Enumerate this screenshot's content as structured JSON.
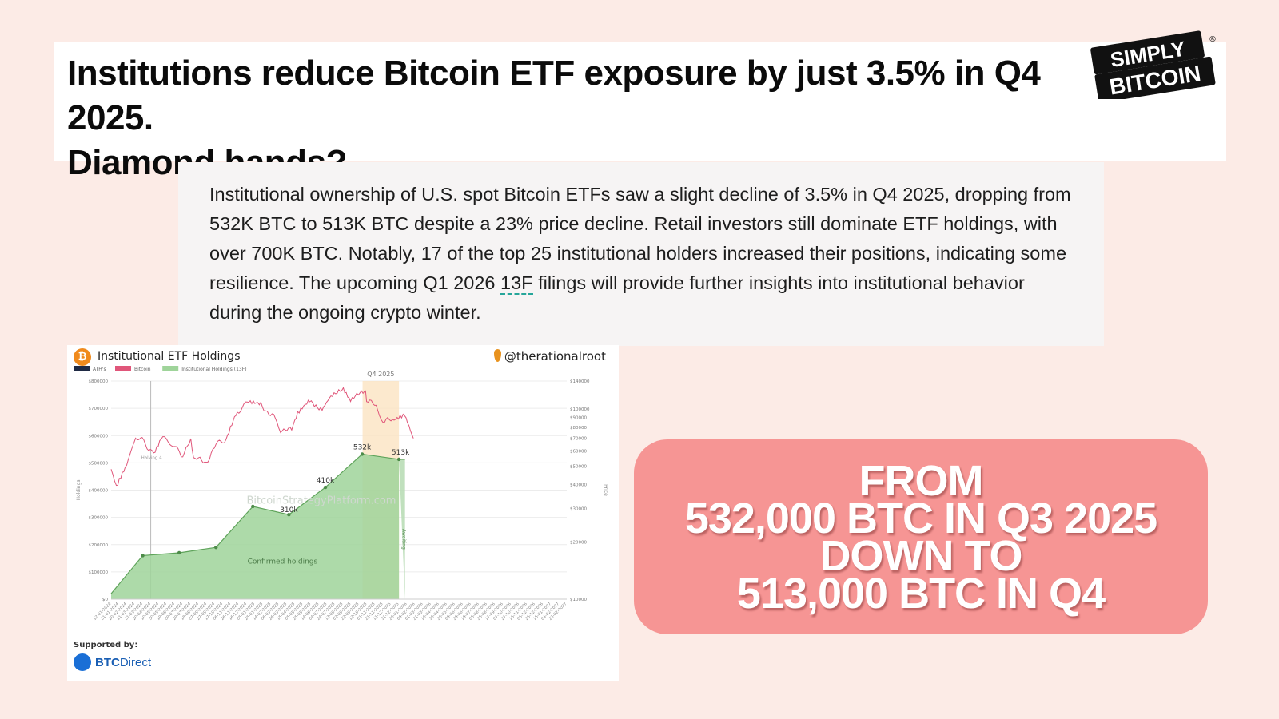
{
  "headline": {
    "line1": "Institutions reduce Bitcoin ETF exposure by just 3.5% in Q4 2025.",
    "line2": "Diamond hands?"
  },
  "logo": {
    "line1": "SIMPLY",
    "line2": "BITCOIN",
    "registered": "®"
  },
  "summary": {
    "before_term": "Institutional ownership of U.S. spot Bitcoin ETFs saw a slight decline of 3.5% in Q4 2025, dropping from 532K BTC to 513K BTC despite a 23% price decline. Retail investors still dominate ETF holdings, with over 700K BTC. Notably, 17 of the top 25 institutional holders increased their positions, indicating some resilience. The upcoming Q1 2026 ",
    "term": "13F",
    "after_term": " filings will provide further insights into institutional behavior during the ongoing crypto winter."
  },
  "chart_card": {
    "title": "Institutional ETF Holdings",
    "btc_icon": "₿",
    "handle": "@therationalroot",
    "supported_by": "Supported by:",
    "sponsor_bold": "BTC",
    "sponsor_rest": "Direct"
  },
  "callout": {
    "line1": "FROM",
    "line2": "532,000 BTC IN Q3 2025",
    "line3": "DOWN TO",
    "line4": "513,000 BTC IN Q4"
  },
  "chart_data": {
    "type": "area",
    "title": "Institutional ETF Holdings",
    "legend": [
      "ATH's",
      "Bitcoin",
      "Institutional Holdings (13F)"
    ],
    "legend_position": "top-left",
    "colors": {
      "ath": "#1f2a44",
      "bitcoin": "#e0567a",
      "holdings": "#9fd49a",
      "holdings_line": "#5ea35a",
      "q4_band": "#fbe3c2"
    },
    "ylabel_left": "Holdings",
    "ylabel_right": "Price",
    "left_ticks": [
      "$0",
      "$100000",
      "$200000",
      "$300000",
      "$400000",
      "$500000",
      "$600000",
      "$700000",
      "$800000"
    ],
    "right_ticks": [
      "$10000",
      "$20000",
      "$30000",
      "$40000",
      "$50000",
      "$60000",
      "$70000",
      "$80000",
      "$90000",
      "$100000",
      "$140000"
    ],
    "right_scale": "log",
    "ylim_left": [
      0,
      800000
    ],
    "ylim_right": [
      10000,
      140000
    ],
    "x_range": [
      "2024-01-12",
      "2027-02-23"
    ],
    "x_ticks": [
      "12-01-2024",
      "31-01-2024",
      "20-02-2024",
      "11-03-2024",
      "31-03-2024",
      "20-04-2024",
      "10-05-2024",
      "30-05-2024",
      "19-06-2024",
      "09-07-2024",
      "29-07-2024",
      "18-08-2024",
      "07-09-2024",
      "27-09-2024",
      "17-10-2024",
      "06-11-2024",
      "26-11-2024",
      "16-12-2024",
      "05-01-2025",
      "25-01-2025",
      "14-02-2025",
      "06-03-2025",
      "26-03-2025",
      "15-04-2025",
      "05-05-2025",
      "25-05-2025",
      "14-06-2025",
      "04-07-2025",
      "24-07-2025",
      "13-08-2025",
      "02-09-2025",
      "22-09-2025",
      "12-10-2025",
      "01-11-2025",
      "21-11-2025",
      "11-12-2025",
      "31-12-2025",
      "20-01-2026",
      "09-02-2026",
      "01-03-2026",
      "21-03-2026",
      "10-04-2026",
      "30-04-2026",
      "20-05-2026",
      "09-06-2026",
      "29-06-2026",
      "19-07-2026",
      "08-08-2026",
      "28-08-2026",
      "17-09-2026",
      "07-10-2026",
      "27-10-2026",
      "16-11-2026",
      "06-12-2026",
      "26-12-2026",
      "15-01-2027",
      "04-02-2027",
      "23-02-2027"
    ],
    "holdings": {
      "name": "Institutional Holdings (13F)",
      "x": [
        "2024-01-12",
        "2024-03-31",
        "2024-06-30",
        "2024-09-30",
        "2024-12-31",
        "2025-03-31",
        "2025-06-30",
        "2025-09-30",
        "2025-12-31"
      ],
      "values": [
        20000,
        160000,
        170000,
        190000,
        340000,
        310000,
        410000,
        532000,
        513000
      ]
    },
    "pending_projection": {
      "x_end": "2026-01-15",
      "value": 513000,
      "label": "Awaiting"
    },
    "bitcoin_price": {
      "name": "Bitcoin",
      "x": [
        "2024-01-12",
        "2024-01-25",
        "2024-02-20",
        "2024-03-13",
        "2024-04-15",
        "2024-05-01",
        "2024-05-20",
        "2024-06-10",
        "2024-07-05",
        "2024-07-29",
        "2024-08-05",
        "2024-09-06",
        "2024-09-30",
        "2024-10-29",
        "2024-11-12",
        "2024-11-22",
        "2024-12-17",
        "2025-01-20",
        "2025-02-25",
        "2025-03-10",
        "2025-04-07",
        "2025-04-22",
        "2025-05-22",
        "2025-06-22",
        "2025-07-14",
        "2025-08-14",
        "2025-09-01",
        "2025-10-06",
        "2025-10-11",
        "2025-11-04",
        "2025-11-21",
        "2025-12-15",
        "2026-01-14",
        "2026-02-05"
      ],
      "values": [
        46000,
        40000,
        52000,
        72000,
        63000,
        59000,
        70000,
        66000,
        57000,
        68000,
        54000,
        53000,
        64000,
        72000,
        89000,
        98000,
        106000,
        106000,
        88000,
        79000,
        76000,
        93000,
        111000,
        101000,
        120000,
        123000,
        108000,
        125000,
        112000,
        101000,
        85000,
        87000,
        95000,
        70000
      ]
    },
    "annotations": [
      {
        "label": "Q4 2025",
        "x_start": "2025-10-01",
        "x_end": "2025-12-31"
      },
      {
        "label": "Halving 4",
        "x": "2024-04-20"
      },
      {
        "label": "532k",
        "x": "2025-09-30",
        "y": 532000
      },
      {
        "label": "513k",
        "x": "2025-12-31",
        "y": 513000
      },
      {
        "label": "410k",
        "x": "2025-06-30",
        "y": 410000
      },
      {
        "label": "310k",
        "x": "2025-03-31",
        "y": 310000
      },
      {
        "label": "Confirmed holdings"
      },
      {
        "label": "Awaiting"
      }
    ],
    "watermark": "BitcoinStrategyPlatform.com",
    "grid": true
  }
}
